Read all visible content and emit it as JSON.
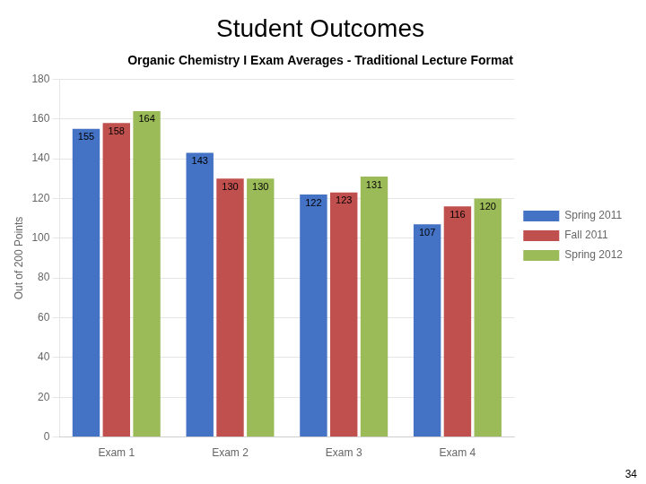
{
  "chart_data": {
    "type": "bar",
    "title": "Student Outcomes",
    "subtitle": "Organic Chemistry I Exam Averages - Traditional Lecture Format",
    "ylabel": "Out of 200 Points",
    "categories": [
      "Exam 1",
      "Exam 2",
      "Exam 3",
      "Exam 4"
    ],
    "series": [
      {
        "name": "Spring 2011",
        "color": "#4472C4",
        "values": [
          155,
          143,
          122,
          107
        ]
      },
      {
        "name": "Fall 2011",
        "color": "#C0504D",
        "values": [
          158,
          130,
          123,
          116
        ]
      },
      {
        "name": "Spring 2012",
        "color": "#9BBB59",
        "values": [
          164,
          130,
          131,
          120
        ]
      }
    ],
    "ylim": [
      0,
      180
    ],
    "yticks": [
      0,
      20,
      40,
      60,
      80,
      100,
      120,
      140,
      160,
      180
    ],
    "grid": true,
    "legend": "right",
    "data_labels": true,
    "annotations": [
      "34"
    ]
  }
}
